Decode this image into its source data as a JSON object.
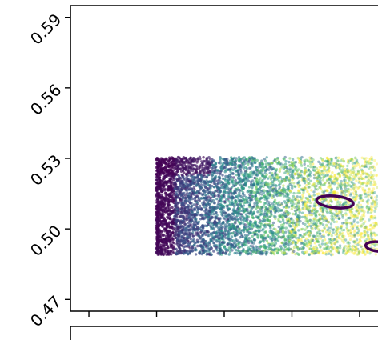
{
  "chart_data": {
    "type": "scatter",
    "title": "",
    "xlabel": "",
    "ylabel": "",
    "ylim": [
      0.465,
      0.595
    ],
    "yticks": [
      0.47,
      0.5,
      0.53,
      0.56,
      0.59
    ],
    "ytick_labels": [
      "0.47",
      "0.50",
      "0.53",
      "0.56",
      "0.59"
    ],
    "xlim": [
      0,
      1
    ],
    "x_ticks": [
      0.06,
      0.28,
      0.5,
      0.72,
      0.94
    ],
    "grid": false,
    "legend": "none",
    "colormap": "viridis",
    "point_cloud": {
      "x_range": [
        0.28,
        1.0
      ],
      "y_range": [
        0.489,
        0.5305
      ],
      "dense_edge_color": "#440154",
      "description_colors": [
        "#440154",
        "#3b528b",
        "#21918c",
        "#5ec962",
        "#fde725"
      ]
    },
    "contours": [
      {
        "cx": 0.86,
        "cy": 0.5115,
        "rx": 0.06,
        "ry": 0.0025,
        "color": "#440154"
      },
      {
        "cx": 1.0,
        "cy": 0.4925,
        "rx": 0.04,
        "ry": 0.002,
        "color": "#440154"
      }
    ]
  },
  "colors": {
    "axis": "#000000",
    "background": "#ffffff"
  }
}
